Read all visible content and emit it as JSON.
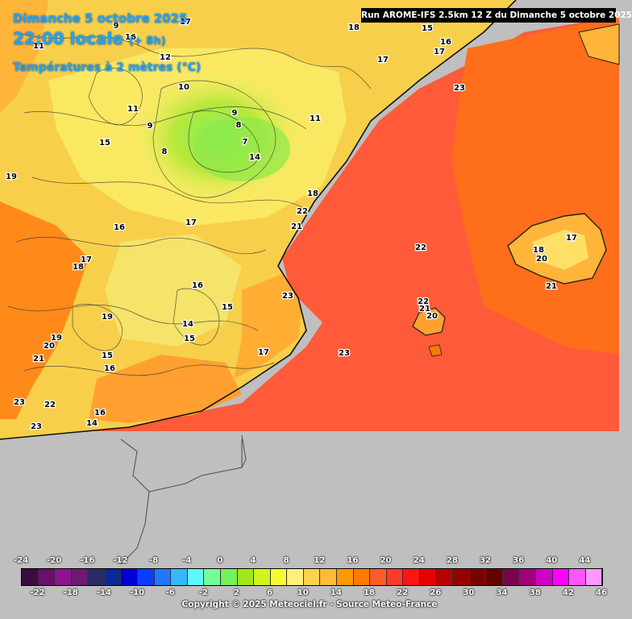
{
  "header": {
    "date": "Dimanche 5 octobre 2025",
    "time": "22:00 locale",
    "offset": "(+ 8h)",
    "variable": "Températures à 2 mètres (°C)"
  },
  "run_info": "Run AROME-IFS 2.5km 12 Z du Dimanche 5 octobre 2025",
  "copyright": "Copyright © 2025 Meteociel.fr - Source Meteo-France",
  "legend": {
    "top_ticks": [
      "-24",
      "-20",
      "-16",
      "-12",
      "-8",
      "-4",
      "0",
      "4",
      "8",
      "12",
      "16",
      "20",
      "24",
      "28",
      "32",
      "36",
      "40",
      "44"
    ],
    "bottom_ticks": [
      "-22",
      "-18",
      "-14",
      "-10",
      "-6",
      "-2",
      "2",
      "6",
      "10",
      "14",
      "18",
      "22",
      "26",
      "30",
      "34",
      "38",
      "42",
      "46"
    ],
    "colors": [
      "#3a0d3d",
      "#6a0f6a",
      "#8c138c",
      "#6e1a6e",
      "#2a2a66",
      "#0a2a99",
      "#0000d4",
      "#0a3cff",
      "#1f78ff",
      "#34b9ff",
      "#5ff7ff",
      "#72ff9a",
      "#73f25a",
      "#a2e61c",
      "#d4f21c",
      "#f8f833",
      "#fff07a",
      "#ffd24d",
      "#ffbb33",
      "#ff9900",
      "#ff7a00",
      "#ff5a2a",
      "#ff3a2a",
      "#ff1414",
      "#e60000",
      "#b80000",
      "#960000",
      "#7a0000",
      "#660000",
      "#7a0050",
      "#a0007a",
      "#d200c8",
      "#ff00ff",
      "#ff55ff",
      "#ff99ff"
    ]
  },
  "map_labels": [
    {
      "t": "11"
    },
    {
      "t": "9"
    },
    {
      "t": "12"
    },
    {
      "t": "10"
    },
    {
      "t": "11"
    },
    {
      "t": "9"
    },
    {
      "t": "8"
    },
    {
      "t": "9"
    },
    {
      "t": "8"
    },
    {
      "t": "7"
    },
    {
      "t": "15"
    },
    {
      "t": "11"
    },
    {
      "t": "18"
    },
    {
      "t": "15"
    },
    {
      "t": "17"
    },
    {
      "t": "16"
    },
    {
      "t": "17"
    },
    {
      "t": "19"
    },
    {
      "t": "14"
    },
    {
      "t": "18"
    },
    {
      "t": "22"
    },
    {
      "t": "21"
    },
    {
      "t": "16"
    },
    {
      "t": "17"
    },
    {
      "t": "18"
    },
    {
      "t": "17"
    },
    {
      "t": "16"
    },
    {
      "t": "23"
    },
    {
      "t": "15"
    },
    {
      "t": "19"
    },
    {
      "t": "14"
    },
    {
      "t": "15"
    },
    {
      "t": "19"
    },
    {
      "t": "20"
    },
    {
      "t": "21"
    },
    {
      "t": "15"
    },
    {
      "t": "16"
    },
    {
      "t": "23"
    },
    {
      "t": "17"
    },
    {
      "t": "23"
    },
    {
      "t": "22"
    },
    {
      "t": "16"
    },
    {
      "t": "14"
    },
    {
      "t": "23"
    },
    {
      "t": "23"
    },
    {
      "t": "22"
    },
    {
      "t": "22"
    },
    {
      "t": "21"
    },
    {
      "t": "20"
    },
    {
      "t": "17"
    },
    {
      "t": "18"
    },
    {
      "t": "20"
    },
    {
      "t": "21"
    },
    {
      "t": "16"
    },
    {
      "t": "17"
    }
  ]
}
